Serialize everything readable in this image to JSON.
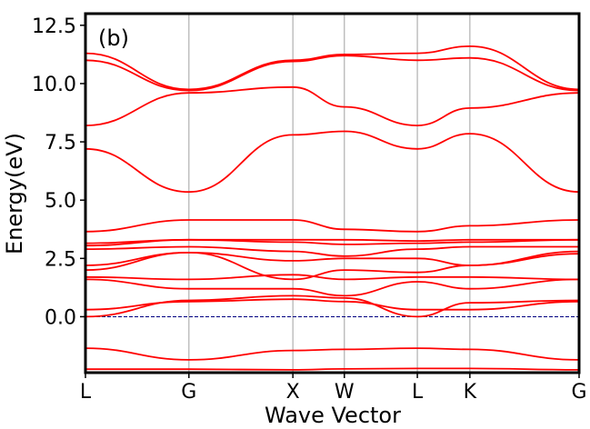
{
  "chart_data": {
    "type": "line",
    "panel_label": "(b)",
    "xlabel": "Wave Vector",
    "ylabel": "Energy(eV)",
    "ylim": [
      -2.4,
      13.0
    ],
    "yticks": [
      0.0,
      2.5,
      5.0,
      7.5,
      10.0,
      12.5
    ],
    "ytick_labels": [
      "0.0",
      "2.5",
      "5.0",
      "7.5",
      "10.0",
      "12.5"
    ],
    "xlim": [
      0,
      9.4
    ],
    "kpoints": [
      {
        "label": "L",
        "x": 0
      },
      {
        "label": "G",
        "x": 1.97
      },
      {
        "label": "X",
        "x": 3.95
      },
      {
        "label": "W",
        "x": 4.93
      },
      {
        "label": "L",
        "x": 6.32
      },
      {
        "label": "K",
        "x": 7.32
      },
      {
        "label": "G",
        "x": 9.4
      }
    ],
    "fermi_level": 0.0,
    "grid": "vertical lines at high-symmetry points",
    "colors": {
      "bands": "#ff0000",
      "fermi": "#000080",
      "grid": "#b0b0b0",
      "frame": "#000000"
    },
    "series": [
      {
        "values": [
          -2.25,
          -2.25,
          -2.28,
          -2.24,
          -2.22,
          -2.22,
          -2.28
        ]
      },
      {
        "values": [
          -1.35,
          -1.85,
          -1.45,
          -1.4,
          -1.35,
          -1.4,
          -1.85
        ]
      },
      {
        "values": [
          0.3,
          0.65,
          0.75,
          0.65,
          0.3,
          0.3,
          0.65
        ]
      },
      {
        "values": [
          0.0,
          0.7,
          0.9,
          0.8,
          0.0,
          0.6,
          0.7
        ]
      },
      {
        "values": [
          1.6,
          1.2,
          1.2,
          0.9,
          1.5,
          1.2,
          1.6
        ]
      },
      {
        "values": [
          1.7,
          1.6,
          1.8,
          1.6,
          1.7,
          1.7,
          1.6
        ]
      },
      {
        "values": [
          2.0,
          2.75,
          1.6,
          2.0,
          1.9,
          2.2,
          2.7
        ]
      },
      {
        "values": [
          2.2,
          2.75,
          2.4,
          2.5,
          2.5,
          2.2,
          2.8
        ]
      },
      {
        "values": [
          2.9,
          3.0,
          2.8,
          2.6,
          2.9,
          3.0,
          3.0
        ]
      },
      {
        "values": [
          3.05,
          3.3,
          3.2,
          3.1,
          3.15,
          3.2,
          3.3
        ]
      },
      {
        "values": [
          3.15,
          3.3,
          3.3,
          3.3,
          3.25,
          3.3,
          3.3
        ]
      },
      {
        "values": [
          3.65,
          4.15,
          4.15,
          3.75,
          3.65,
          3.9,
          4.15
        ]
      },
      {
        "values": [
          7.2,
          5.35,
          7.8,
          7.95,
          7.2,
          7.85,
          5.35
        ]
      },
      {
        "values": [
          8.2,
          9.6,
          9.85,
          9.0,
          8.2,
          8.95,
          9.6
        ]
      },
      {
        "values": [
          11.0,
          9.7,
          10.95,
          11.2,
          11.0,
          11.1,
          9.7
        ]
      },
      {
        "values": [
          11.3,
          9.75,
          11.0,
          11.25,
          11.3,
          11.6,
          9.75
        ]
      }
    ]
  }
}
